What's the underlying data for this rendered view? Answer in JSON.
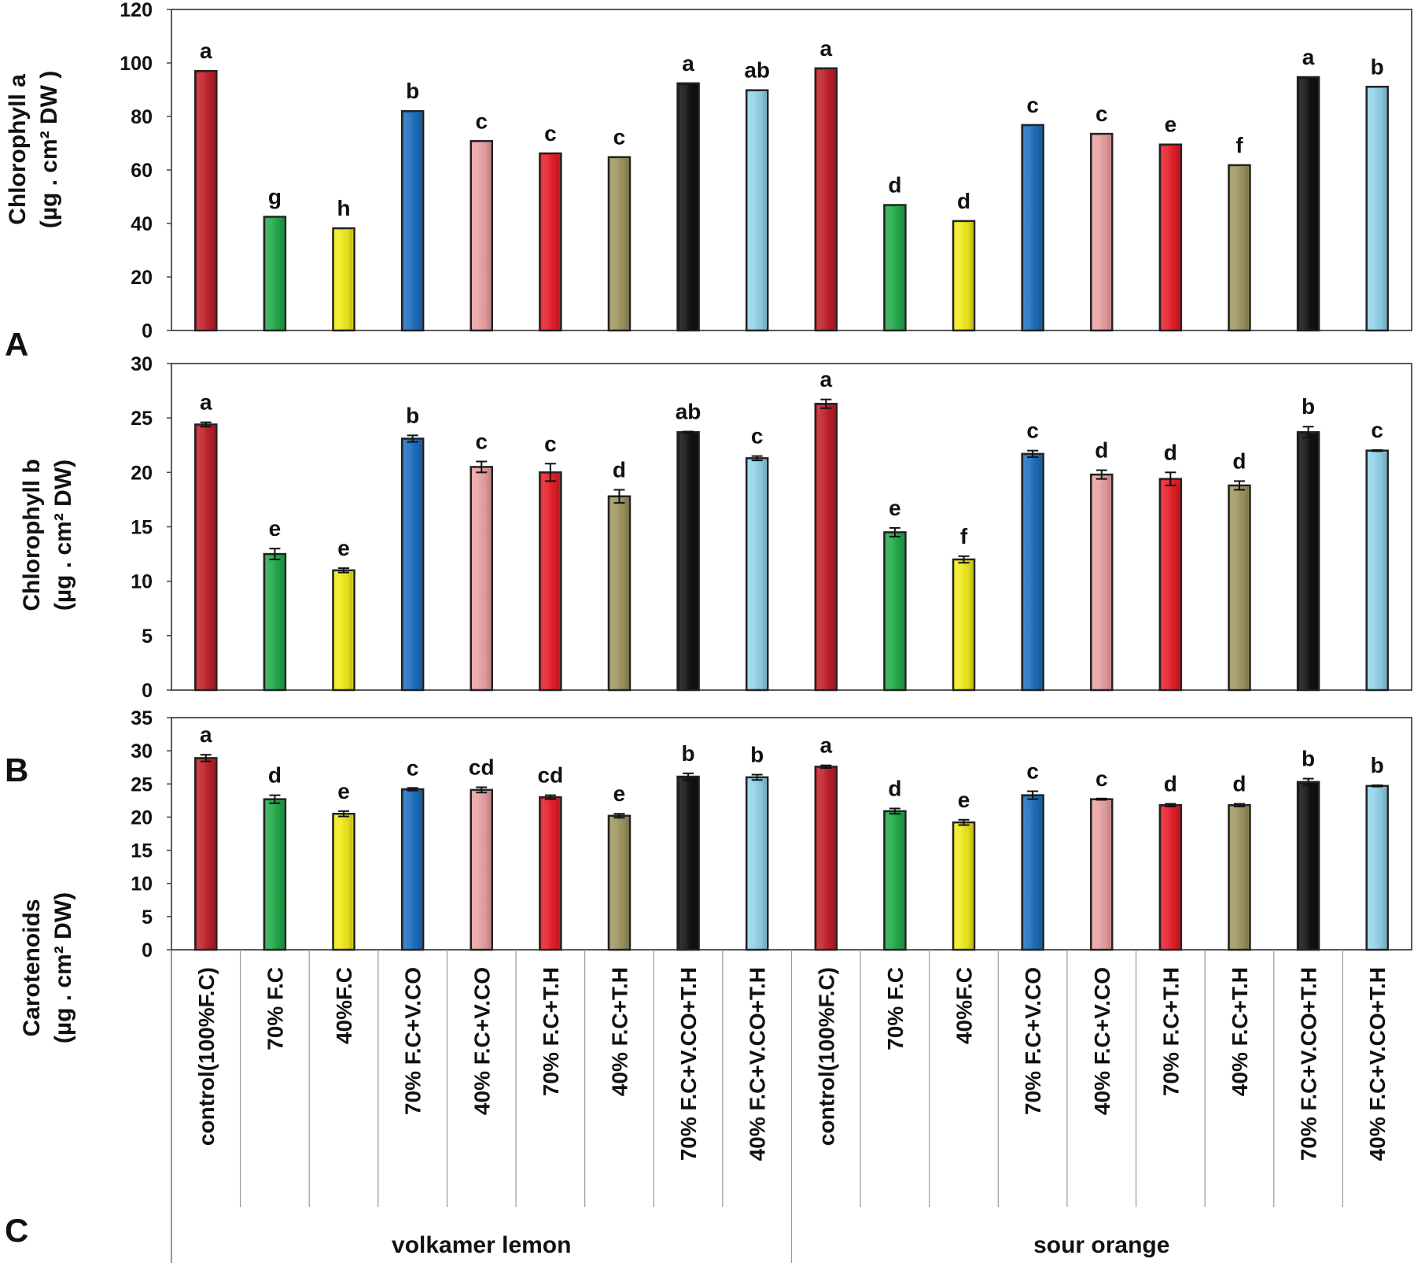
{
  "chart_data": {
    "type": "bar",
    "groups": [
      "volkamer lemon",
      "sour orange"
    ],
    "categories": [
      "control(100%F.C)",
      "70% F.C",
      "40%F.C",
      "70% F.C+V.CO",
      "40% F.C+V.CO",
      "70% F.C+T.H",
      "40% F.C+T.H",
      "70% F.C+V.CO+T.H",
      "40% F.C+V.CO+T.H"
    ],
    "colors": [
      "#c0202a",
      "#22aa4a",
      "#f0ea1c",
      "#1c6fbd",
      "#eaa2a2",
      "#e81e28",
      "#a09660",
      "#111111",
      "#92d3ea"
    ],
    "panels": [
      {
        "letter": "A",
        "ylabel_line1": "Chlorophyll a",
        "ylabel_line2": "(µg . cm² DW )",
        "ylim": [
          0,
          120
        ],
        "yticks": [
          0,
          20,
          40,
          60,
          80,
          100,
          120
        ],
        "values": [
          97,
          42.5,
          38.2,
          82,
          70.8,
          66.2,
          64.8,
          92.4,
          89.8,
          98,
          46.9,
          40.9,
          76.8,
          73.5,
          69.5,
          61.8,
          94.7,
          91.1
        ],
        "errors": [
          0,
          0,
          0,
          0,
          0,
          0,
          0,
          0,
          0,
          0,
          0,
          0,
          0,
          0,
          0,
          0,
          0,
          0
        ],
        "letters": [
          "a",
          "g",
          "h",
          "b",
          "c",
          "c",
          "c",
          "a",
          "ab",
          "a",
          "d",
          "d",
          "c",
          "c",
          "e",
          "f",
          "a",
          "b"
        ]
      },
      {
        "letter": "B",
        "ylabel_line1": "Chlorophyll b",
        "ylabel_line2": "(µg . cm² DW)",
        "ylim": [
          0,
          30
        ],
        "yticks": [
          0,
          5,
          10,
          15,
          20,
          25,
          30
        ],
        "values": [
          24.4,
          12.5,
          11.0,
          23.1,
          20.5,
          20.0,
          17.8,
          23.7,
          21.3,
          26.3,
          14.5,
          12.0,
          21.7,
          19.8,
          19.4,
          18.8,
          23.7,
          22.0
        ],
        "errors": [
          0.2,
          0.5,
          0.2,
          0.3,
          0.5,
          0.8,
          0.6,
          0.05,
          0.2,
          0.4,
          0.4,
          0.3,
          0.3,
          0.4,
          0.6,
          0.4,
          0.5,
          0.05
        ],
        "letters": [
          "a",
          "e",
          "e",
          "b",
          "c",
          "c",
          "d",
          "ab",
          "c",
          "a",
          "e",
          "f",
          "c",
          "d",
          "d",
          "d",
          "b",
          "c"
        ]
      },
      {
        "letter": "C",
        "ylabel_line1": "Carotenoids",
        "ylabel_line2": "(µg . cm² DW)",
        "ylim": [
          0,
          35
        ],
        "yticks": [
          0,
          5,
          10,
          15,
          20,
          25,
          30,
          35
        ],
        "values": [
          28.9,
          22.7,
          20.5,
          24.2,
          24.1,
          23.0,
          20.2,
          26.1,
          26.0,
          27.6,
          20.9,
          19.2,
          23.3,
          22.7,
          21.8,
          21.8,
          25.3,
          24.7
        ],
        "errors": [
          0.5,
          0.6,
          0.4,
          0.2,
          0.4,
          0.3,
          0.3,
          0.5,
          0.4,
          0.2,
          0.4,
          0.4,
          0.6,
          0.1,
          0.2,
          0.2,
          0.5,
          0.1
        ],
        "letters": [
          "a",
          "d",
          "e",
          "c",
          "cd",
          "cd",
          "e",
          "b",
          "b",
          "a",
          "d",
          "e",
          "c",
          "c",
          "d",
          "d",
          "b",
          "b"
        ]
      }
    ]
  }
}
